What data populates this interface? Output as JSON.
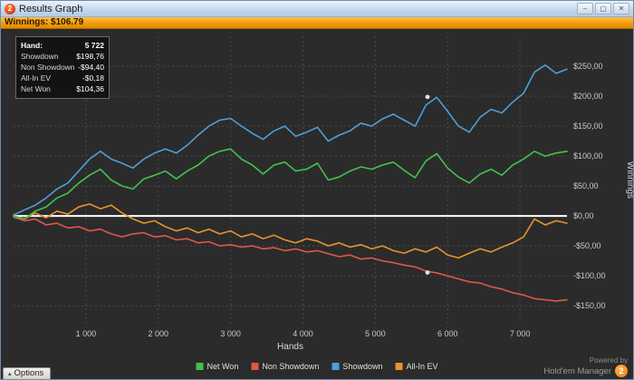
{
  "window": {
    "title": "Results Graph",
    "icon_badge": "2",
    "buttons": {
      "minimize": "–",
      "maximize": "▢",
      "close": "✕"
    }
  },
  "winnings_bar": {
    "text": "Winnings: $106.79"
  },
  "tooltip": {
    "rows": [
      {
        "label": "Hand:",
        "value": "5 722"
      },
      {
        "label": "Showdown",
        "value": "$198,76"
      },
      {
        "label": "Non Showdown",
        "value": "-$94,40"
      },
      {
        "label": "All-In EV",
        "value": "-$0,18"
      },
      {
        "label": "Net Won",
        "value": "$104,36"
      }
    ]
  },
  "legend": [
    {
      "label": "Net Won",
      "color": "#44c14d"
    },
    {
      "label": "Non Showdown",
      "color": "#de5748"
    },
    {
      "label": "Showdown",
      "color": "#4d9fd6"
    },
    {
      "label": "All-In EV",
      "color": "#e8932c"
    }
  ],
  "footer": {
    "powered_by": "Powered by",
    "brand": "Hold'em Manager",
    "badge": "2"
  },
  "options": {
    "label": "Options",
    "arrow": "▴"
  },
  "chart_data": {
    "type": "line",
    "title": "Results Graph",
    "xlabel": "Hands",
    "ylabel": "Winnings",
    "xlim": [
      0,
      7650
    ],
    "ylim": [
      -180,
      300
    ],
    "grid": true,
    "grid_color": "#4a4a4a",
    "zero_line_color": "#ffffff",
    "x_ticks": [
      1000,
      2000,
      3000,
      4000,
      5000,
      6000,
      7000
    ],
    "x_tick_labels": [
      "1 000",
      "2 000",
      "3 000",
      "4 000",
      "5 000",
      "6 000",
      "7 000"
    ],
    "y_ticks": [
      250,
      200,
      150,
      100,
      50,
      0,
      -50,
      -100,
      -150
    ],
    "y_tick_labels": [
      "$250,00",
      "$200,00",
      "$150,00",
      "$100,00",
      "$50,00",
      "$0,00",
      "-$50,00",
      "-$100,00",
      "-$150,00"
    ],
    "x": [
      0,
      150,
      300,
      450,
      600,
      750,
      900,
      1050,
      1200,
      1350,
      1500,
      1650,
      1800,
      1950,
      2100,
      2250,
      2400,
      2550,
      2700,
      2850,
      3000,
      3150,
      3300,
      3450,
      3600,
      3750,
      3900,
      4050,
      4200,
      4350,
      4500,
      4650,
      4800,
      4950,
      5100,
      5250,
      5400,
      5550,
      5700,
      5850,
      6000,
      6150,
      6300,
      6450,
      6600,
      6750,
      6900,
      7050,
      7200,
      7350,
      7500,
      7650
    ],
    "series": [
      {
        "name": "Non Showdown",
        "color": "#de5748",
        "y": [
          -2,
          -8,
          -5,
          -15,
          -12,
          -20,
          -18,
          -25,
          -22,
          -30,
          -35,
          -30,
          -28,
          -35,
          -33,
          -40,
          -38,
          -45,
          -43,
          -50,
          -48,
          -52,
          -50,
          -55,
          -53,
          -58,
          -55,
          -60,
          -58,
          -63,
          -68,
          -65,
          -72,
          -70,
          -75,
          -78,
          -82,
          -85,
          -92,
          -95,
          -100,
          -105,
          -110,
          -112,
          -118,
          -122,
          -128,
          -132,
          -138,
          -140,
          -142,
          -140
        ]
      },
      {
        "name": "All-In EV",
        "color": "#e8932c",
        "y": [
          0,
          -5,
          5,
          -3,
          8,
          3,
          15,
          20,
          12,
          18,
          5,
          -5,
          -12,
          -8,
          -18,
          -25,
          -20,
          -28,
          -22,
          -30,
          -25,
          -35,
          -30,
          -38,
          -32,
          -40,
          -45,
          -38,
          -42,
          -50,
          -45,
          -52,
          -48,
          -55,
          -50,
          -58,
          -62,
          -55,
          -60,
          -52,
          -65,
          -70,
          -62,
          -55,
          -60,
          -52,
          -45,
          -35,
          -5,
          -15,
          -8,
          -12
        ]
      },
      {
        "name": "Net Won",
        "color": "#44c14d",
        "y": [
          0,
          -5,
          8,
          15,
          30,
          38,
          55,
          68,
          78,
          60,
          50,
          45,
          62,
          68,
          75,
          62,
          75,
          85,
          100,
          108,
          112,
          95,
          85,
          70,
          85,
          90,
          75,
          78,
          88,
          60,
          65,
          75,
          82,
          78,
          85,
          90,
          76,
          64,
          92,
          104,
          80,
          65,
          55,
          70,
          78,
          68,
          85,
          95,
          108,
          100,
          105,
          108
        ]
      },
      {
        "name": "Showdown",
        "color": "#4d9fd6",
        "y": [
          2,
          10,
          18,
          30,
          45,
          55,
          75,
          95,
          108,
          95,
          88,
          80,
          95,
          105,
          112,
          105,
          118,
          135,
          150,
          160,
          163,
          150,
          138,
          128,
          142,
          150,
          133,
          140,
          148,
          125,
          135,
          142,
          155,
          150,
          162,
          170,
          160,
          150,
          185,
          198,
          175,
          150,
          140,
          165,
          178,
          172,
          190,
          205,
          240,
          252,
          238,
          245
        ]
      }
    ],
    "markers": [
      {
        "series": "Showdown",
        "x": 5722,
        "y": 198.76
      },
      {
        "series": "Non Showdown",
        "x": 5722,
        "y": -94.4
      }
    ],
    "legend_position": "bottom-center"
  }
}
